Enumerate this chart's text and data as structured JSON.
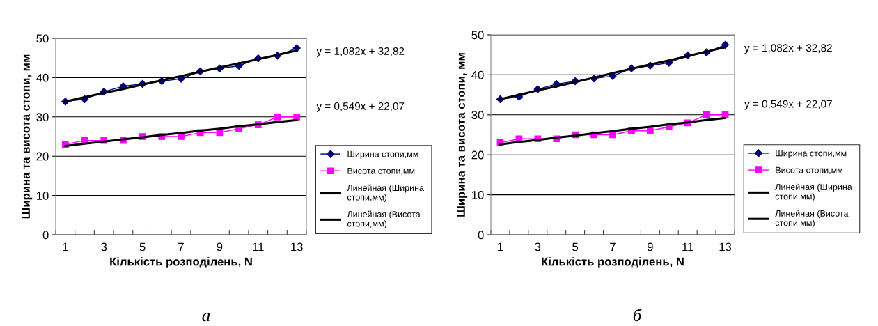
{
  "chart_data": [
    {
      "type": "line",
      "xlabel": "Кількість розподілень, N",
      "ylabel": "Ширина та висота стопи, мм",
      "categories": [
        "1",
        null,
        "3",
        null,
        "5",
        null,
        "7",
        null,
        "9",
        null,
        "11",
        null,
        "13"
      ],
      "ylim": [
        0,
        50
      ],
      "yticks": [
        0,
        10,
        20,
        30,
        40,
        50
      ],
      "grid": "y",
      "legend": "right",
      "series": [
        {
          "name": "Ширина стопи,мм",
          "color": "#000080",
          "marker": "diamond",
          "values": [
            33.9,
            34.5,
            36.4,
            37.8,
            38.4,
            39.1,
            39.7,
            41.6,
            42.3,
            43.0,
            44.9,
            45.6,
            47.5
          ]
        },
        {
          "name": "Висота стопи,мм",
          "color": "#ff00ff",
          "marker": "square",
          "values": [
            23,
            24,
            24,
            24,
            25,
            25,
            25,
            26,
            26,
            27,
            28,
            30,
            30
          ]
        },
        {
          "name": "Линейная (Ширина стопи,мм)",
          "color": "#000000",
          "marker": "none",
          "values": [
            33.9,
            35.0,
            36.1,
            37.1,
            38.2,
            39.3,
            40.4,
            41.5,
            42.6,
            43.6,
            44.7,
            45.8,
            46.9
          ]
        },
        {
          "name": "Линейная (Висота стопи,мм)",
          "color": "#000000",
          "marker": "none",
          "values": [
            22.6,
            23.2,
            23.7,
            24.3,
            24.8,
            25.4,
            25.9,
            26.5,
            27.0,
            27.6,
            28.1,
            28.7,
            29.2
          ]
        }
      ],
      "annotations": [
        "y = 1,082x + 32,82",
        "y = 0,549x + 22,07",
        "а"
      ]
    },
    {
      "type": "line",
      "xlabel": "Кількість розподілень, N",
      "ylabel": "Ширина та висота стопи, мм",
      "categories": [
        "1",
        null,
        "3",
        null,
        "5",
        null,
        "7",
        null,
        "9",
        null,
        "11",
        null,
        "13"
      ],
      "ylim": [
        0,
        50
      ],
      "yticks": [
        0,
        10,
        20,
        30,
        40,
        50
      ],
      "grid": "y",
      "legend": "right",
      "series": [
        {
          "name": "Ширина стопи,мм",
          "color": "#000080",
          "marker": "diamond",
          "values": [
            33.9,
            34.5,
            36.4,
            37.7,
            38.4,
            39.1,
            39.7,
            41.6,
            42.3,
            43.0,
            44.9,
            45.6,
            47.5
          ]
        },
        {
          "name": "Висота стопи,мм",
          "color": "#ff00ff",
          "marker": "square",
          "values": [
            23,
            24,
            24,
            24,
            25,
            25,
            25,
            26,
            26,
            27,
            28,
            30,
            30
          ]
        },
        {
          "name": "Линейная (Ширина стопи,мм)",
          "color": "#000000",
          "marker": "none",
          "values": [
            33.9,
            35.0,
            36.1,
            37.1,
            38.2,
            39.3,
            40.4,
            41.5,
            42.6,
            43.6,
            44.7,
            45.8,
            46.9
          ]
        },
        {
          "name": "Линейная (Висота стопи,мм)",
          "color": "#000000",
          "marker": "none",
          "values": [
            22.6,
            23.2,
            23.7,
            24.3,
            24.8,
            25.4,
            25.9,
            26.5,
            27.0,
            27.6,
            28.1,
            28.7,
            29.2
          ]
        }
      ],
      "annotations": [
        "y = 1,082x + 32,82",
        "y = 0,549x + 22,07",
        "б"
      ]
    }
  ]
}
